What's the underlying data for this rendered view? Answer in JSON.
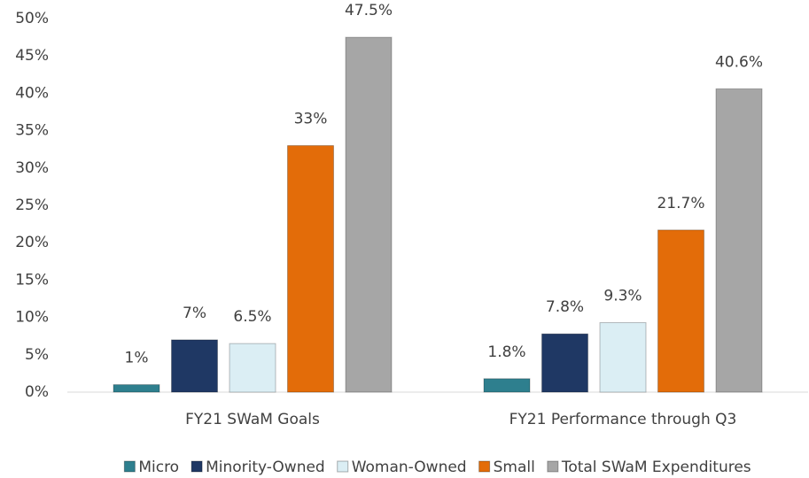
{
  "chart_data": {
    "type": "bar",
    "categories": [
      "FY21 SWaM Goals",
      "FY21 Performance through Q3"
    ],
    "series": [
      {
        "name": "Micro",
        "color": "#2e7f8e",
        "values": [
          1,
          1.8
        ],
        "value_labels": [
          "1%",
          "1.8%"
        ]
      },
      {
        "name": "Minority-Owned",
        "color": "#1f3864",
        "values": [
          7,
          7.8
        ],
        "value_labels": [
          "7%",
          "7.8%"
        ]
      },
      {
        "name": "Woman-Owned",
        "color": "#dbeef4",
        "values": [
          6.5,
          9.3
        ],
        "value_labels": [
          "6.5%",
          "9.3%"
        ]
      },
      {
        "name": "Small",
        "color": "#e36c09",
        "values": [
          33,
          21.7
        ],
        "value_labels": [
          "33%",
          "21.7%"
        ]
      },
      {
        "name": "Total SWaM Expenditures",
        "color": "#a6a6a6",
        "values": [
          47.5,
          40.6
        ],
        "value_labels": [
          "47.5%",
          "40.6%"
        ]
      }
    ],
    "ylim": [
      0,
      50
    ],
    "yticks": [
      {
        "value": 0,
        "label": "0%"
      },
      {
        "value": 5,
        "label": "5%"
      },
      {
        "value": 10,
        "label": "10%"
      },
      {
        "value": 15,
        "label": "15%"
      },
      {
        "value": 20,
        "label": "20%"
      },
      {
        "value": 25,
        "label": "25%"
      },
      {
        "value": 30,
        "label": "30%"
      },
      {
        "value": 35,
        "label": "35%"
      },
      {
        "value": 40,
        "label": "40%"
      },
      {
        "value": 45,
        "label": "45%"
      },
      {
        "value": 50,
        "label": "50%"
      }
    ],
    "grid": false,
    "legend": "bottom"
  }
}
